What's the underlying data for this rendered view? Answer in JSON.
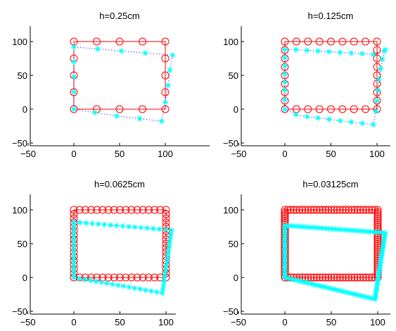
{
  "colors": {
    "original": "#ff0000",
    "deformed": "#00ffff",
    "connector": "#0000ff",
    "axes": "#000000"
  },
  "chart_data": [
    {
      "type": "scatter",
      "title": "h=0.25cm",
      "xlim": [
        -50,
        115
      ],
      "ylim": [
        -50,
        125
      ],
      "xticks": [
        -50,
        0,
        50,
        100
      ],
      "yticks": [
        -50,
        0,
        50,
        100
      ],
      "xticklabels": [
        "−50",
        "0",
        "50",
        "100"
      ],
      "yticklabels": [
        "−50",
        "0",
        "50",
        "100"
      ],
      "grid": false,
      "series": [
        {
          "marker": "circle",
          "color": "#ff0000",
          "line": "solid",
          "closed": true,
          "points": [
            [
              0,
              0
            ],
            [
              25,
              0
            ],
            [
              50,
              0
            ],
            [
              75,
              0
            ],
            [
              100,
              0
            ],
            [
              100,
              25
            ],
            [
              100,
              50
            ],
            [
              100,
              75
            ],
            [
              100,
              100
            ],
            [
              75,
              100
            ],
            [
              50,
              100
            ],
            [
              25,
              100
            ],
            [
              0,
              100
            ],
            [
              0,
              75
            ],
            [
              0,
              50
            ],
            [
              0,
              25
            ]
          ]
        },
        {
          "marker": "star",
          "color": "#00ffff",
          "line": "dotted",
          "linecolor": "#0000ff",
          "closed": true,
          "points": [
            [
              0,
              0
            ],
            [
              23,
              -5
            ],
            [
              47,
              -10
            ],
            [
              72,
              -14
            ],
            [
              96,
              -18
            ],
            [
              100,
              10
            ],
            [
              103,
              35
            ],
            [
              105,
              58
            ],
            [
              108,
              80
            ],
            [
              78,
              83
            ],
            [
              52,
              86
            ],
            [
              26,
              89
            ],
            [
              0,
              92
            ],
            [
              0,
              70
            ],
            [
              0,
              48
            ],
            [
              0,
              25
            ]
          ]
        }
      ]
    },
    {
      "type": "scatter",
      "title": "h=0.125cm",
      "xlim": [
        -50,
        115
      ],
      "ylim": [
        -50,
        125
      ],
      "xticks": [
        -50,
        0,
        50,
        100
      ],
      "yticks": [
        -50,
        0,
        50,
        100
      ],
      "xticklabels": [
        "−50",
        "0",
        "50",
        "100"
      ],
      "yticklabels": [
        "−50",
        "0",
        "50",
        "100"
      ],
      "grid": false,
      "series": [
        {
          "marker": "circle",
          "color": "#ff0000",
          "line": "solid",
          "closed": true,
          "points": [
            [
              0,
              0
            ],
            [
              12.5,
              0
            ],
            [
              25,
              0
            ],
            [
              37.5,
              0
            ],
            [
              50,
              0
            ],
            [
              62.5,
              0
            ],
            [
              75,
              0
            ],
            [
              87.5,
              0
            ],
            [
              100,
              0
            ],
            [
              100,
              12.5
            ],
            [
              100,
              25
            ],
            [
              100,
              37.5
            ],
            [
              100,
              50
            ],
            [
              100,
              62.5
            ],
            [
              100,
              75
            ],
            [
              100,
              87.5
            ],
            [
              100,
              100
            ],
            [
              87.5,
              100
            ],
            [
              75,
              100
            ],
            [
              62.5,
              100
            ],
            [
              50,
              100
            ],
            [
              37.5,
              100
            ],
            [
              25,
              100
            ],
            [
              12.5,
              100
            ],
            [
              0,
              100
            ],
            [
              0,
              87.5
            ],
            [
              0,
              75
            ],
            [
              0,
              62.5
            ],
            [
              0,
              50
            ],
            [
              0,
              37.5
            ],
            [
              0,
              25
            ],
            [
              0,
              12.5
            ]
          ]
        },
        {
          "marker": "star",
          "color": "#00ffff",
          "line": "dotted",
          "linecolor": "#0000ff",
          "closed": true,
          "points": [
            [
              0,
              0
            ],
            [
              12,
              -8
            ],
            [
              24,
              -11
            ],
            [
              36,
              -13
            ],
            [
              48,
              -15
            ],
            [
              60,
              -17
            ],
            [
              72,
              -19
            ],
            [
              84,
              -21
            ],
            [
              96,
              -23
            ],
            [
              99,
              -3
            ],
            [
              100,
              12
            ],
            [
              101,
              28
            ],
            [
              102,
              44
            ],
            [
              104,
              60
            ],
            [
              106,
              74
            ],
            [
              108,
              86
            ],
            [
              109,
              88
            ],
            [
              96,
              81
            ],
            [
              84,
              82
            ],
            [
              72,
              83
            ],
            [
              60,
              84
            ],
            [
              48,
              85
            ],
            [
              36,
              86
            ],
            [
              24,
              87
            ],
            [
              12,
              88
            ],
            [
              0,
              88
            ],
            [
              0,
              76
            ],
            [
              0,
              64
            ],
            [
              0,
              52
            ],
            [
              0,
              40
            ],
            [
              0,
              28
            ],
            [
              0,
              14
            ]
          ]
        }
      ]
    },
    {
      "type": "scatter",
      "title": "h=0.0625cm",
      "xlim": [
        -50,
        115
      ],
      "ylim": [
        -50,
        125
      ],
      "xticks": [
        -50,
        0,
        50,
        100
      ],
      "yticks": [
        -50,
        0,
        50,
        100
      ],
      "xticklabels": [
        "−50",
        "0",
        "50",
        "100"
      ],
      "yticklabels": [
        "−50",
        "0",
        "50",
        "100"
      ],
      "grid": false,
      "series": [
        {
          "marker": "circle",
          "color": "#ff0000",
          "line": "solid",
          "closed": true,
          "rect": [
            0,
            0,
            100,
            100
          ],
          "per_side": 16
        },
        {
          "marker": "star",
          "color": "#00ffff",
          "line": "dotted",
          "linecolor": "#0000ff",
          "closed": true,
          "corners": [
            [
              0,
              0
            ],
            [
              96,
              -23
            ],
            [
              106,
              70
            ],
            [
              0,
              82
            ]
          ],
          "per_side": 16
        }
      ]
    },
    {
      "type": "scatter",
      "title": "h=0.03125cm",
      "xlim": [
        -50,
        115
      ],
      "ylim": [
        -50,
        125
      ],
      "xticks": [
        -50,
        0,
        50,
        100
      ],
      "yticks": [
        -50,
        0,
        50,
        100
      ],
      "xticklabels": [
        "−50",
        "0",
        "50",
        "100"
      ],
      "yticklabels": [
        "−50",
        "0",
        "50",
        "100"
      ],
      "grid": false,
      "series": [
        {
          "marker": "circle",
          "color": "#ff0000",
          "line": "solid",
          "closed": true,
          "rect": [
            0,
            0,
            100,
            100
          ],
          "per_side": 32
        },
        {
          "marker": "star",
          "color": "#00ffff",
          "line": "dotted",
          "linecolor": "#0000ff",
          "closed": true,
          "corners": [
            [
              0,
              0
            ],
            [
              97,
              -32
            ],
            [
              108,
              66
            ],
            [
              0,
              77
            ]
          ],
          "per_side": 32
        }
      ]
    }
  ]
}
